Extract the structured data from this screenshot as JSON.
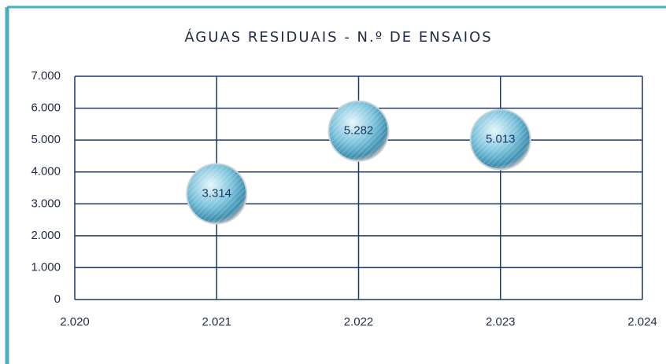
{
  "chart_data": {
    "type": "scatter",
    "title": "ÁGUAS RESIDUAIS - N.º DE ENSAIOS",
    "x": [
      2021,
      2022,
      2023
    ],
    "values": [
      3314,
      5282,
      5013
    ],
    "value_labels": [
      "3.314",
      "5.282",
      "5.013"
    ],
    "color": "#5fb0d0",
    "grid": true,
    "xlim": [
      2020,
      2024
    ],
    "xticks": [
      {
        "value": 2020,
        "label": "2.020"
      },
      {
        "value": 2021,
        "label": "2.021"
      },
      {
        "value": 2022,
        "label": "2.022"
      },
      {
        "value": 2023,
        "label": "2.023"
      },
      {
        "value": 2024,
        "label": "2.024"
      }
    ],
    "ylim": [
      0,
      7000
    ],
    "yticks": [
      0,
      {
        "value": 1000,
        "label": "1.000"
      },
      {
        "value": 2000,
        "label": "2.000"
      },
      {
        "value": 3000,
        "label": "3.000"
      },
      {
        "value": 4000,
        "label": "4.000"
      },
      {
        "value": 5000,
        "label": "5.000"
      },
      {
        "value": 6000,
        "label": "6.000"
      },
      {
        "value": 7000,
        "label": "7.000"
      }
    ]
  }
}
